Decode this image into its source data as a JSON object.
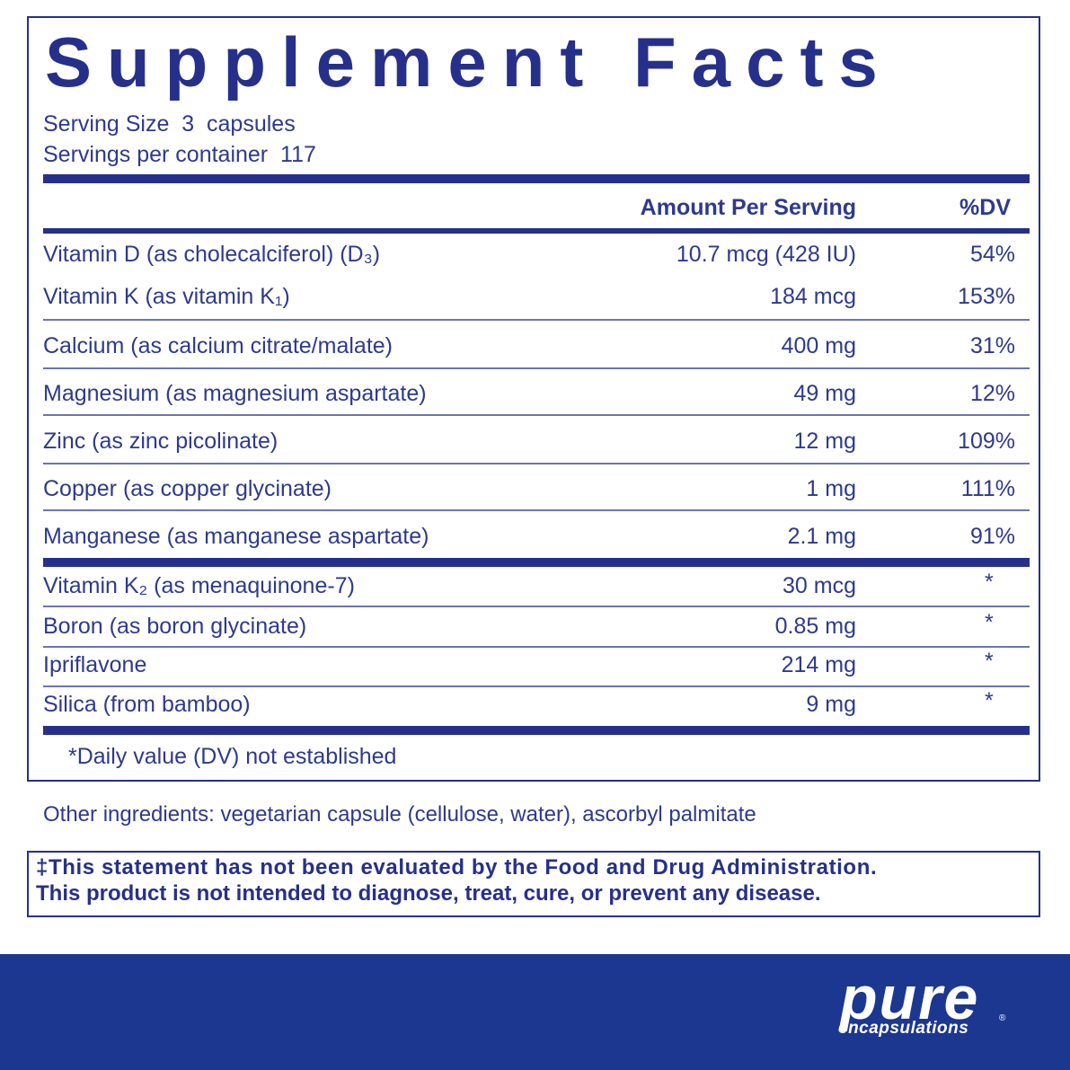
{
  "label": {
    "title": "Supplement Facts",
    "serving_size": "Serving Size  3  capsules",
    "servings_per_container": "Servings per container  117",
    "header": {
      "amount": "Amount Per Serving",
      "dv": "%DV"
    },
    "groups": [
      {
        "rows": [
          {
            "name": "Vitamin D (as cholecalciferol) (D₃)",
            "amount": "10.7 mcg (428 IU)",
            "dv": "54%"
          },
          {
            "name": "Vitamin K (as vitamin K₁)",
            "amount": "184 mcg",
            "dv": "153%"
          },
          {
            "name": "Calcium (as calcium citrate/malate)",
            "amount": "400 mg",
            "dv": "31%"
          },
          {
            "name": "Magnesium (as magnesium aspartate)",
            "amount": "49 mg",
            "dv": "12%"
          },
          {
            "name": "Zinc (as zinc picolinate)",
            "amount": "12 mg",
            "dv": "109%"
          },
          {
            "name": "Copper (as copper glycinate)",
            "amount": "1 mg",
            "dv": "111%"
          },
          {
            "name": "Manganese (as manganese aspartate)",
            "amount": "2.1 mg",
            "dv": "91%"
          }
        ]
      },
      {
        "rows": [
          {
            "name": "Vitamin K₂ (as menaquinone-7)",
            "amount": "30 mcg",
            "dv": "*"
          },
          {
            "name": "Boron (as boron glycinate)",
            "amount": "0.85 mg",
            "dv": "*"
          },
          {
            "name": "Ipriflavone",
            "amount": "214 mg",
            "dv": "*"
          },
          {
            "name": "Silica (from bamboo)",
            "amount": "9 mg",
            "dv": "*"
          }
        ]
      }
    ],
    "footnote": "*Daily value (DV) not established"
  },
  "other_ingredients": "Other ingredients: vegetarian capsule (cellulose, water), ascorbyl palmitate",
  "disclaimer": [
    "‡This statement has not been evaluated by the Food and Drug Administration.",
    "This product is not intended to diagnose, treat, cure, or prevent any disease."
  ],
  "brand": {
    "name": "pure",
    "mark": "®",
    "tagline": "encapsulations"
  }
}
